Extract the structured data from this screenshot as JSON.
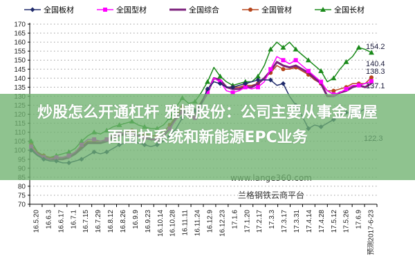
{
  "chart_data": {
    "type": "line",
    "title": "",
    "xlabel": "",
    "ylabel": "",
    "ylim": [
      70,
      170
    ],
    "yticks": [
      70,
      75,
      80,
      85,
      90,
      95,
      100,
      105,
      110,
      115,
      120,
      125,
      130,
      135,
      140,
      145,
      150,
      155,
      160,
      165,
      170
    ],
    "grid": "horizontal dotted",
    "legend_position": "top",
    "categories": [
      "16.5.20",
      "16.6.3",
      "16.6.17",
      "16.7.1",
      "16.7.15",
      "16.7.29",
      "16.8.12",
      "16.8.26",
      "16.9.9",
      "16.9.23",
      "16.10.14",
      "16.10.28",
      "16.11.11",
      "16.11.24",
      "16.12.9",
      "16.12.23",
      "17.1.6",
      "17.1.20",
      "17.2.17",
      "17.3.3",
      "17.3.17",
      "17.3.31",
      "17.4.14",
      "17.4.28",
      "17.5.12",
      "17.5.26",
      "17.6.9",
      "预测2017-6-23"
    ],
    "series": [
      {
        "name": "全国板材",
        "color": "#1f2a6b",
        "marker": "diamond",
        "values": [
          100,
          97,
          95,
          94,
          94,
          93,
          93,
          94,
          95,
          97,
          99,
          98,
          99,
          101,
          103,
          104,
          105,
          104,
          103,
          102,
          103,
          105,
          108,
          112,
          118,
          125,
          122,
          126,
          134,
          138,
          137,
          135,
          135,
          136,
          137,
          138,
          139,
          139,
          139,
          136,
          137,
          130,
          125,
          119,
          112,
          114,
          113,
          115,
          117,
          120,
          121,
          120,
          121,
          123,
          122.3
        ]
      },
      {
        "name": "全国型材",
        "color": "#ff00ff",
        "marker": "square",
        "values": [
          102,
          98,
          96,
          95,
          96,
          96,
          97,
          99,
          103,
          106,
          106,
          105,
          106,
          108,
          109,
          110,
          109,
          108,
          107,
          106,
          106,
          108,
          112,
          117,
          121,
          119,
          118,
          126,
          132,
          140,
          138,
          133,
          132,
          133,
          135,
          134,
          135,
          138,
          145,
          152,
          150,
          148,
          150,
          147,
          144,
          141,
          138,
          133,
          131,
          132,
          134,
          136,
          136,
          137,
          138.3
        ]
      },
      {
        "name": "全国综合",
        "color": "#7b1f7b",
        "marker": "none",
        "values": [
          101,
          98,
          96,
          95,
          95,
          95,
          96,
          98,
          101,
          104,
          104,
          104,
          105,
          107,
          108,
          109,
          109,
          108,
          107,
          106,
          106,
          108,
          112,
          118,
          122,
          120,
          120,
          126,
          132,
          140,
          139,
          135,
          134,
          134,
          135,
          135,
          137,
          140,
          144,
          149,
          147,
          146,
          147,
          145,
          143,
          140,
          137,
          130,
          130,
          132,
          133,
          135,
          136,
          135,
          137.1
        ]
      },
      {
        "name": "全国管材",
        "color": "#b5441a",
        "marker": "circle",
        "values": [
          103,
          99,
          97,
          96,
          96,
          96,
          97,
          99,
          102,
          105,
          105,
          105,
          106,
          108,
          109,
          110,
          111,
          110,
          109,
          108,
          108,
          110,
          114,
          119,
          124,
          122,
          122,
          127,
          133,
          140,
          138,
          135,
          135,
          135,
          136,
          136,
          137,
          140,
          143,
          147,
          145,
          145,
          146,
          144,
          142,
          139,
          137,
          133,
          133,
          134,
          135,
          137,
          137,
          137,
          140.4
        ]
      },
      {
        "name": "全国长材",
        "color": "#1a8a1a",
        "marker": "triangle",
        "values": [
          105,
          99,
          97,
          96,
          97,
          98,
          99,
          101,
          105,
          108,
          110,
          109,
          111,
          113,
          114,
          115,
          116,
          114,
          113,
          112,
          112,
          114,
          118,
          124,
          129,
          126,
          127,
          132,
          138,
          146,
          141,
          138,
          136,
          137,
          138,
          138,
          141,
          147,
          156,
          160,
          157,
          160,
          156,
          153,
          150,
          147,
          144,
          138,
          140,
          145,
          149,
          152,
          157,
          156,
          154.2
        ]
      }
    ],
    "end_labels": [
      "154.2",
      "140.4",
      "138.3",
      "137.1",
      "122.3"
    ]
  },
  "legend": [
    {
      "label": "全国板材",
      "color": "#1f2a6b",
      "marker": "diamond"
    },
    {
      "label": "全国型材",
      "color": "#ff00ff",
      "marker": "square"
    },
    {
      "label": "全国综合",
      "color": "#7b1f7b",
      "marker": "none"
    },
    {
      "label": "全国管材",
      "color": "#b5441a",
      "marker": "circle"
    },
    {
      "label": "全国长材",
      "color": "#1a8a1a",
      "marker": "triangle"
    }
  ],
  "watermark": {
    "url": "www.lange360.com",
    "name": "兰格钢铁云商平台"
  },
  "banner": {
    "line1": "炒股怎么开通杠杆 雅博股份：公司主要从事金属屋",
    "line2": "面围护系统和新能源EPC业务"
  }
}
